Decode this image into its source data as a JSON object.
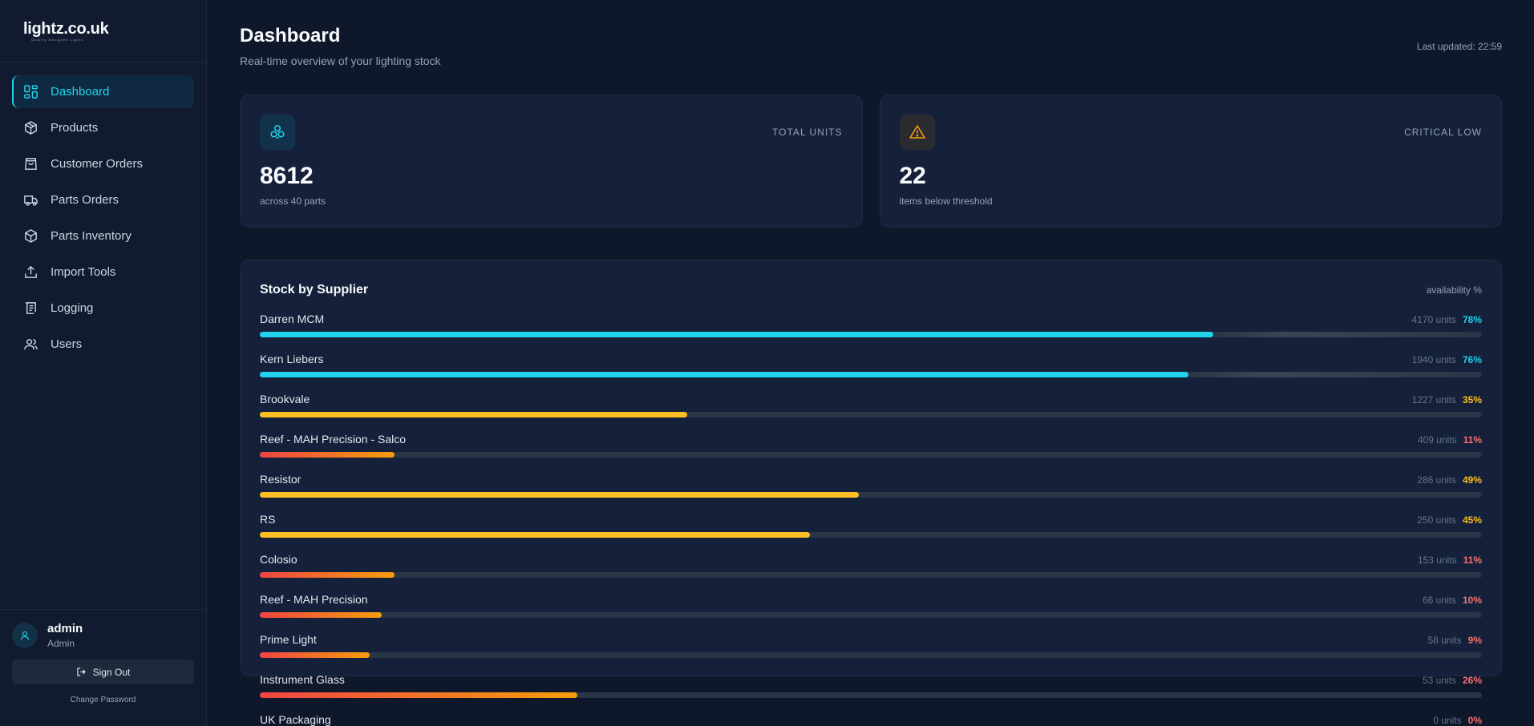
{
  "brand": {
    "name": "lightz.co.uk",
    "tagline": "Quality Designed Lights"
  },
  "nav": [
    {
      "label": "Dashboard",
      "icon": "dashboard-icon",
      "active": true
    },
    {
      "label": "Products",
      "icon": "box-icon",
      "active": false
    },
    {
      "label": "Customer Orders",
      "icon": "shopping-bag-icon",
      "active": false
    },
    {
      "label": "Parts Orders",
      "icon": "truck-icon",
      "active": false
    },
    {
      "label": "Parts Inventory",
      "icon": "package-icon",
      "active": false
    },
    {
      "label": "Import Tools",
      "icon": "upload-icon",
      "active": false
    },
    {
      "label": "Logging",
      "icon": "scroll-icon",
      "active": false
    },
    {
      "label": "Users",
      "icon": "users-icon",
      "active": false
    }
  ],
  "user": {
    "name": "admin",
    "role": "Admin",
    "signout_label": "Sign Out",
    "change_password_label": "Change Password"
  },
  "header": {
    "title": "Dashboard",
    "subtitle": "Real-time overview of your lighting stock",
    "last_updated": "Last updated: 22:59"
  },
  "stats": [
    {
      "label": "TOTAL UNITS",
      "value": "8612",
      "sub": "across 40 parts",
      "icon": "components-icon",
      "accent": "#22d3ee"
    },
    {
      "label": "CRITICAL LOW",
      "value": "22",
      "sub": "items below threshold",
      "icon": "warning-icon",
      "accent": "#f59e0b"
    }
  ],
  "suppliers": {
    "title": "Stock by Supplier",
    "hint": "availability %",
    "colors": {
      "high": "#22d3ee",
      "mid": "#fbbf24",
      "low": "#f87171"
    },
    "rows": [
      {
        "name": "Darren MCM",
        "units": "4170 units",
        "pct": "78%",
        "value": 78,
        "level": "high"
      },
      {
        "name": "Kern Liebers",
        "units": "1940 units",
        "pct": "76%",
        "value": 76,
        "level": "high"
      },
      {
        "name": "Brookvale",
        "units": "1227 units",
        "pct": "35%",
        "value": 35,
        "level": "mid"
      },
      {
        "name": "Reef - MAH Precision - Salco",
        "units": "409 units",
        "pct": "11%",
        "value": 11,
        "level": "low"
      },
      {
        "name": "Resistor",
        "units": "286 units",
        "pct": "49%",
        "value": 49,
        "level": "mid"
      },
      {
        "name": "RS",
        "units": "250 units",
        "pct": "45%",
        "value": 45,
        "level": "mid"
      },
      {
        "name": "Colosio",
        "units": "153 units",
        "pct": "11%",
        "value": 11,
        "level": "low"
      },
      {
        "name": "Reef - MAH Precision",
        "units": "66 units",
        "pct": "10%",
        "value": 10,
        "level": "low"
      },
      {
        "name": "Prime Light",
        "units": "58 units",
        "pct": "9%",
        "value": 9,
        "level": "low"
      },
      {
        "name": "Instrument Glass",
        "units": "53 units",
        "pct": "26%",
        "value": 26,
        "level": "low"
      },
      {
        "name": "UK Packaging",
        "units": "0 units",
        "pct": "0%",
        "value": 0,
        "level": "low"
      }
    ]
  }
}
